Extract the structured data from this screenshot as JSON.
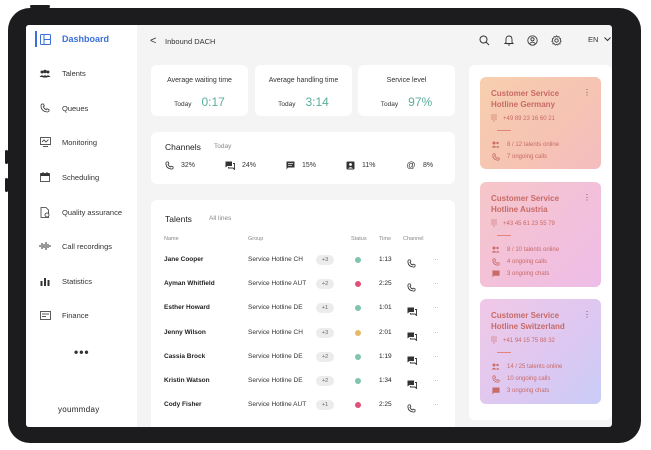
{
  "sidebar": {
    "items": [
      {
        "label": "Dashboard",
        "icon": "dashboard-icon"
      },
      {
        "label": "Talents",
        "icon": "people-icon"
      },
      {
        "label": "Queues",
        "icon": "phone-icon"
      },
      {
        "label": "Monitoring",
        "icon": "monitor-icon"
      },
      {
        "label": "Scheduling",
        "icon": "calendar-icon"
      },
      {
        "label": "Quality assurance",
        "icon": "document-check-icon"
      },
      {
        "label": "Call recordings",
        "icon": "waveform-icon"
      },
      {
        "label": "Statistics",
        "icon": "bar-chart-icon"
      },
      {
        "label": "Finance",
        "icon": "wallet-icon"
      }
    ],
    "more": "•••",
    "brand": "yoummday"
  },
  "header": {
    "back": "<",
    "title": "Inbound DACH",
    "lang": "EN"
  },
  "stats": [
    {
      "title": "Average waiting time",
      "sub": "Today",
      "value": "0:17"
    },
    {
      "title": "Average handling time",
      "sub": "Today",
      "value": "3:14"
    },
    {
      "title": "Service level",
      "sub": "Today",
      "value": "97%"
    }
  ],
  "channels": {
    "title": "Channels",
    "sub": "Today",
    "items": [
      {
        "icon": "phone-icon",
        "value": "32%"
      },
      {
        "icon": "chat-icon",
        "value": "24%"
      },
      {
        "icon": "message-icon",
        "value": "15%"
      },
      {
        "icon": "contact-icon",
        "value": "11%"
      },
      {
        "icon": "at-icon",
        "value": "8%"
      }
    ]
  },
  "talents": {
    "title": "Talents",
    "sub": "All lines",
    "headers": [
      "Name",
      "Group",
      "Status",
      "Time",
      "Channel"
    ],
    "more": "...",
    "rows": [
      {
        "name": "Jane Cooper",
        "group": "Service Hotline CH",
        "badge": "+3",
        "status_color": "#7fc4ab",
        "time": "1:13",
        "channel": "phone"
      },
      {
        "name": "Ayman Whitfield",
        "group": "Service Hotline AUT",
        "badge": "+2",
        "status_color": "#e0507a",
        "time": "2:25",
        "channel": "phone"
      },
      {
        "name": "Esther Howard",
        "group": "Service Hotline DE",
        "badge": "+1",
        "status_color": "#7fc4ab",
        "time": "1:01",
        "channel": "chat"
      },
      {
        "name": "Jenny Wilson",
        "group": "Service Hotline CH",
        "badge": "+3",
        "status_color": "#e8b86a",
        "time": "2:01",
        "channel": "chat"
      },
      {
        "name": "Cassia Brock",
        "group": "Service Hotline DE",
        "badge": "+2",
        "status_color": "#7fc4ab",
        "time": "1:19",
        "channel": "chat"
      },
      {
        "name": "Kristin Watson",
        "group": "Service Hotline DE",
        "badge": "+2",
        "status_color": "#7fc4ab",
        "time": "1:34",
        "channel": "chat"
      },
      {
        "name": "Cody Fisher",
        "group": "Service Hotline AUT",
        "badge": "+1",
        "status_color": "#e0507a",
        "time": "2:25",
        "channel": "phone"
      }
    ]
  },
  "hotlines": [
    {
      "name": "Customer Service Hotline Germany",
      "phone": "+49 89 23 16 60 21",
      "talents": "8 / 12 talents online",
      "calls": "7 ongoing calls",
      "chats": ""
    },
    {
      "name": "Customer Service Hotline Austria",
      "phone": "+43 45 61 23 55 79",
      "talents": "8 / 10 talents online",
      "calls": "4 ongoing calls",
      "chats": "3 ongoing chats"
    },
    {
      "name": "Customer Service Hotline Switzerland",
      "phone": "+41 94 15 75 88 32",
      "talents": "14 / 25 talents online",
      "calls": "10 ongoing calls",
      "chats": "3 ongoing chats"
    }
  ],
  "colors": {
    "accent": "#3b6fd9",
    "stat_value": "#5aae9b",
    "hotline_text": "#c86a66"
  }
}
